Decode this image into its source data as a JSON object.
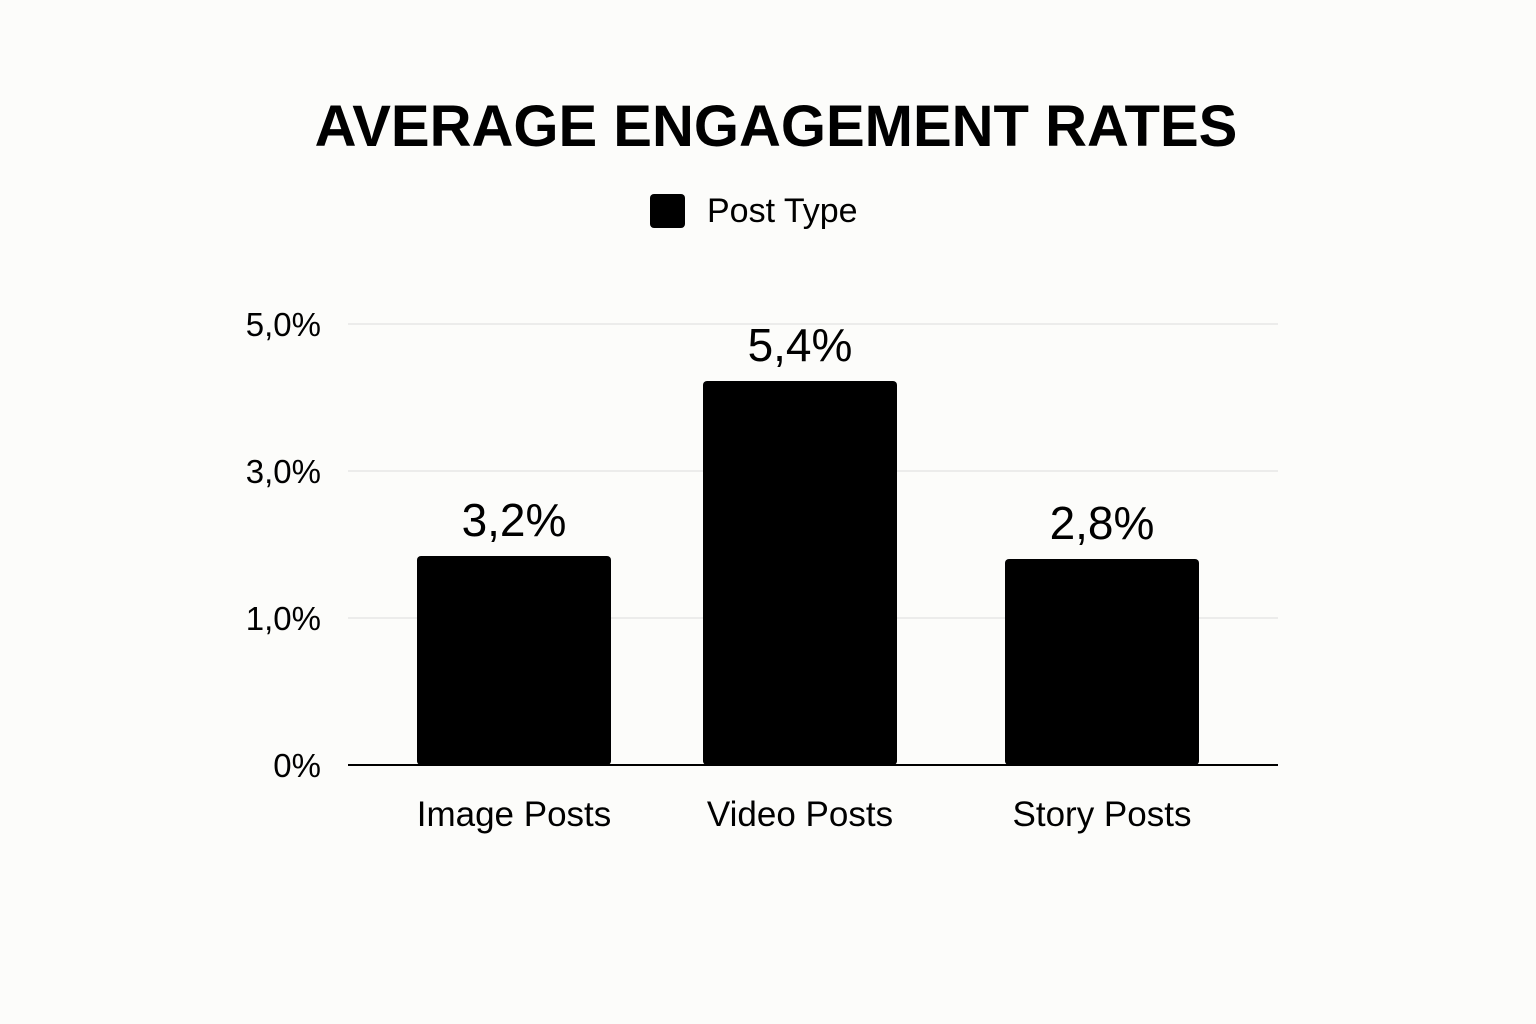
{
  "chart_data": {
    "type": "bar",
    "title": "AVERAGE ENGAGEMENT RATES",
    "legend": [
      "Post Type"
    ],
    "legend_position": "top-center",
    "categories": [
      "Image Posts",
      "Video Posts",
      "Story Posts"
    ],
    "series": [
      {
        "name": "Post Type",
        "values": [
          3.2,
          5.4,
          2.8
        ]
      }
    ],
    "data_labels": [
      "3,2%",
      "5,4%",
      "2,8%"
    ],
    "y_ticks": [
      0,
      1,
      3,
      5
    ],
    "y_tick_labels": [
      "0%",
      "1,0%",
      "3,0%",
      "5,0%"
    ],
    "grid": true,
    "bar_color": "#000000",
    "gridline_color": "#e6e6e6",
    "background_color": "#fcfcfa"
  }
}
